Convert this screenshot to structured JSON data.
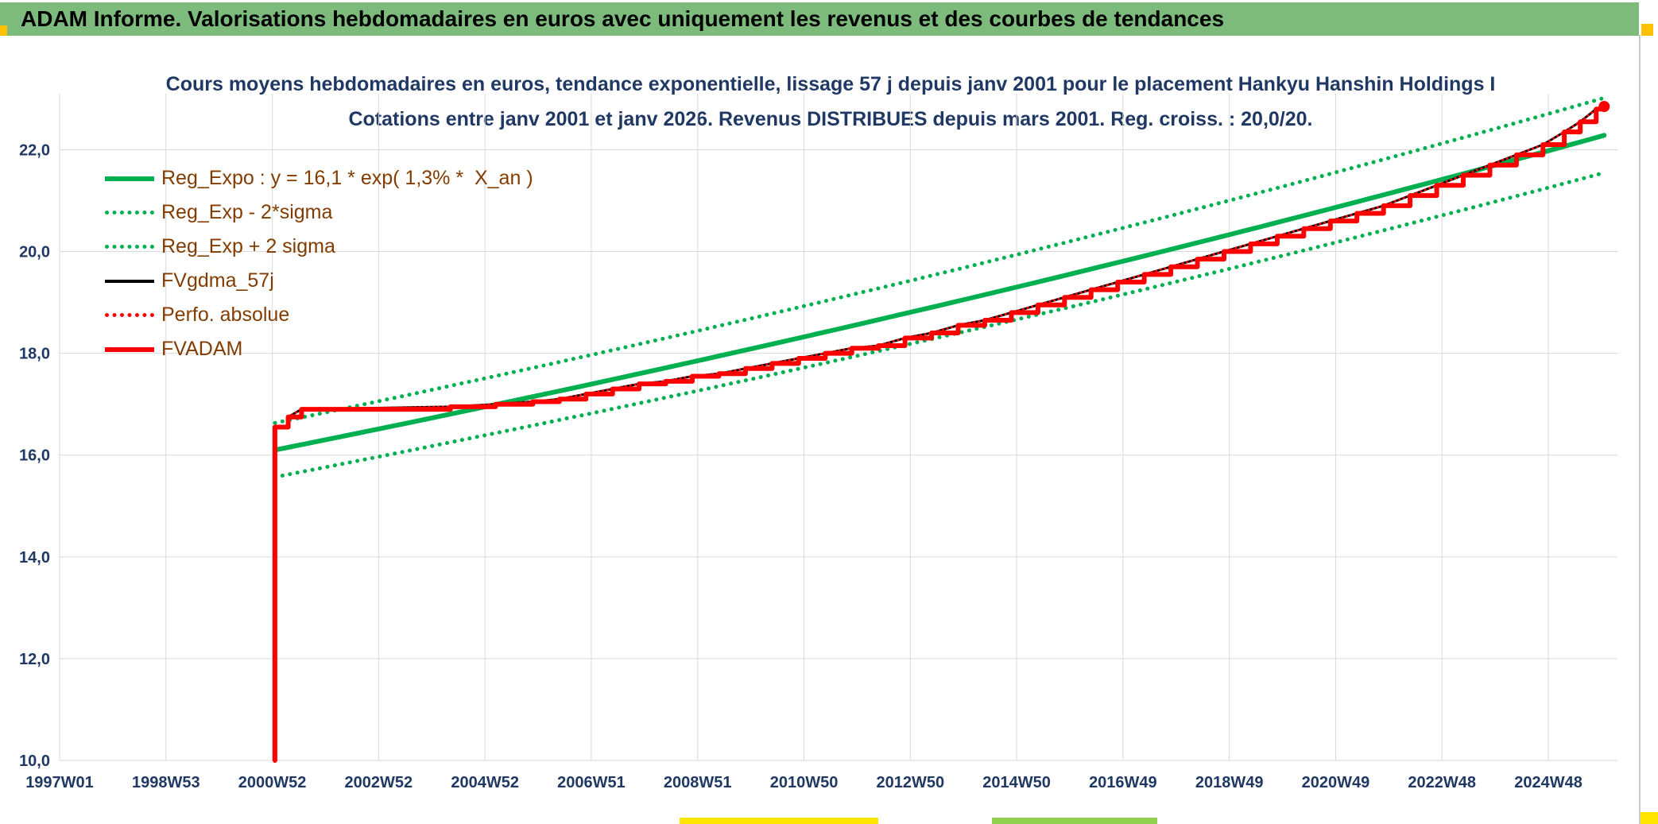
{
  "header": {
    "title": "ADAM Informe. Valorisations hebdomadaires en euros avec uniquement les revenus et des courbes de tendances",
    "bar_color": "#7DBB7D"
  },
  "decorations": {
    "accent_orange": "#FFC000",
    "strip_yellow": "#FFE600",
    "strip_green": "#92D050"
  },
  "chart_data": {
    "type": "line",
    "title_line1": "Cours moyens hebdomadaires en euros, tendance exponentielle, lissage 57 j depuis janv 2001 pour le placement Hankyu Hanshin Holdings I",
    "title_line2": "Cotations entre janv 2001 et janv 2026. Revenus DISTRIBUES depuis mars 2001. Reg. croiss. : 20,0/20.",
    "grid": true,
    "legend_position": "top-left",
    "x_range": [
      1997.0,
      2026.3
    ],
    "y_range": [
      10.0,
      23.1
    ],
    "x_ticks": [
      {
        "label": "1997W01",
        "year": 1997.0
      },
      {
        "label": "1998W53",
        "year": 1999.0
      },
      {
        "label": "2000W52",
        "year": 2001.0
      },
      {
        "label": "2002W52",
        "year": 2003.0
      },
      {
        "label": "2004W52",
        "year": 2005.0
      },
      {
        "label": "2006W51",
        "year": 2007.0
      },
      {
        "label": "2008W51",
        "year": 2009.0
      },
      {
        "label": "2010W50",
        "year": 2011.0
      },
      {
        "label": "2012W50",
        "year": 2013.0
      },
      {
        "label": "2014W50",
        "year": 2015.0
      },
      {
        "label": "2016W49",
        "year": 2017.0
      },
      {
        "label": "2018W49",
        "year": 2019.0
      },
      {
        "label": "2020W49",
        "year": 2021.0
      },
      {
        "label": "2022W48",
        "year": 2023.0
      },
      {
        "label": "2024W48",
        "year": 2025.0
      }
    ],
    "y_ticks": [
      {
        "label": "10,0",
        "value": 10
      },
      {
        "label": "12,0",
        "value": 12
      },
      {
        "label": "14,0",
        "value": 14
      },
      {
        "label": "16,0",
        "value": 16
      },
      {
        "label": "18,0",
        "value": 18
      },
      {
        "label": "20,0",
        "value": 20
      },
      {
        "label": "22,0",
        "value": 22
      }
    ],
    "series": [
      {
        "name": "Reg_Expo : y = 16,1 * exp( 1,3% *  X_an )",
        "color": "#00B050",
        "width": 6,
        "dash": "solid",
        "formula": "exp",
        "a": 16.1,
        "rate_pct_per_year": 1.3,
        "x_ref": 2001.05,
        "x_start": 2001.05,
        "x_end": 2026.1,
        "band_factor": 1.0
      },
      {
        "name": "Reg_Exp - 2*sigma",
        "color": "#00B050",
        "width": 5,
        "dash": "dot",
        "formula": "exp",
        "a": 16.1,
        "rate_pct_per_year": 1.3,
        "x_ref": 2001.05,
        "x_start": 2001.05,
        "x_end": 2026.1,
        "band_factor": 0.967
      },
      {
        "name": "Reg_Exp + 2 sigma",
        "color": "#00B050",
        "width": 5,
        "dash": "dot",
        "formula": "exp",
        "a": 16.1,
        "rate_pct_per_year": 1.3,
        "x_ref": 2001.05,
        "x_start": 2001.05,
        "x_end": 2026.1,
        "band_factor": 1.033
      },
      {
        "name": "FVgdma_57j",
        "color": "#000000",
        "width": 3,
        "dash": "solid",
        "interpolation": "linear",
        "points_ref": "FVADAM",
        "skip_first": 2
      },
      {
        "name": "Perfo. absolue",
        "color": "#FF0000",
        "width": 3,
        "dash": "dot",
        "interpolation": "linear",
        "points_ref": "FVADAM",
        "skip_first": 2
      },
      {
        "name": "FVADAM",
        "color": "#FF0000",
        "width": 6,
        "dash": "solid",
        "interpolation": "step",
        "end_dot": true,
        "points": [
          [
            2001.05,
            10.0
          ],
          [
            2001.05,
            16.55
          ],
          [
            2001.3,
            16.75
          ],
          [
            2001.55,
            16.9
          ],
          [
            2004.35,
            16.95
          ],
          [
            2005.2,
            17.0
          ],
          [
            2005.9,
            17.05
          ],
          [
            2006.4,
            17.1
          ],
          [
            2006.9,
            17.2
          ],
          [
            2007.4,
            17.3
          ],
          [
            2007.9,
            17.4
          ],
          [
            2008.4,
            17.45
          ],
          [
            2008.9,
            17.55
          ],
          [
            2009.4,
            17.6
          ],
          [
            2009.9,
            17.7
          ],
          [
            2010.4,
            17.8
          ],
          [
            2010.9,
            17.9
          ],
          [
            2011.4,
            18.0
          ],
          [
            2011.9,
            18.1
          ],
          [
            2012.4,
            18.15
          ],
          [
            2012.9,
            18.3
          ],
          [
            2013.4,
            18.4
          ],
          [
            2013.9,
            18.55
          ],
          [
            2014.4,
            18.65
          ],
          [
            2014.9,
            18.8
          ],
          [
            2015.4,
            18.95
          ],
          [
            2015.9,
            19.1
          ],
          [
            2016.4,
            19.25
          ],
          [
            2016.9,
            19.4
          ],
          [
            2017.4,
            19.55
          ],
          [
            2017.9,
            19.7
          ],
          [
            2018.4,
            19.85
          ],
          [
            2018.9,
            20.0
          ],
          [
            2019.4,
            20.15
          ],
          [
            2019.9,
            20.3
          ],
          [
            2020.4,
            20.45
          ],
          [
            2020.9,
            20.6
          ],
          [
            2021.4,
            20.75
          ],
          [
            2021.9,
            20.9
          ],
          [
            2022.4,
            21.1
          ],
          [
            2022.9,
            21.3
          ],
          [
            2023.4,
            21.5
          ],
          [
            2023.9,
            21.7
          ],
          [
            2024.4,
            21.9
          ],
          [
            2024.9,
            22.1
          ],
          [
            2025.3,
            22.35
          ],
          [
            2025.6,
            22.55
          ],
          [
            2025.9,
            22.8
          ],
          [
            2026.05,
            22.85
          ]
        ]
      }
    ]
  }
}
